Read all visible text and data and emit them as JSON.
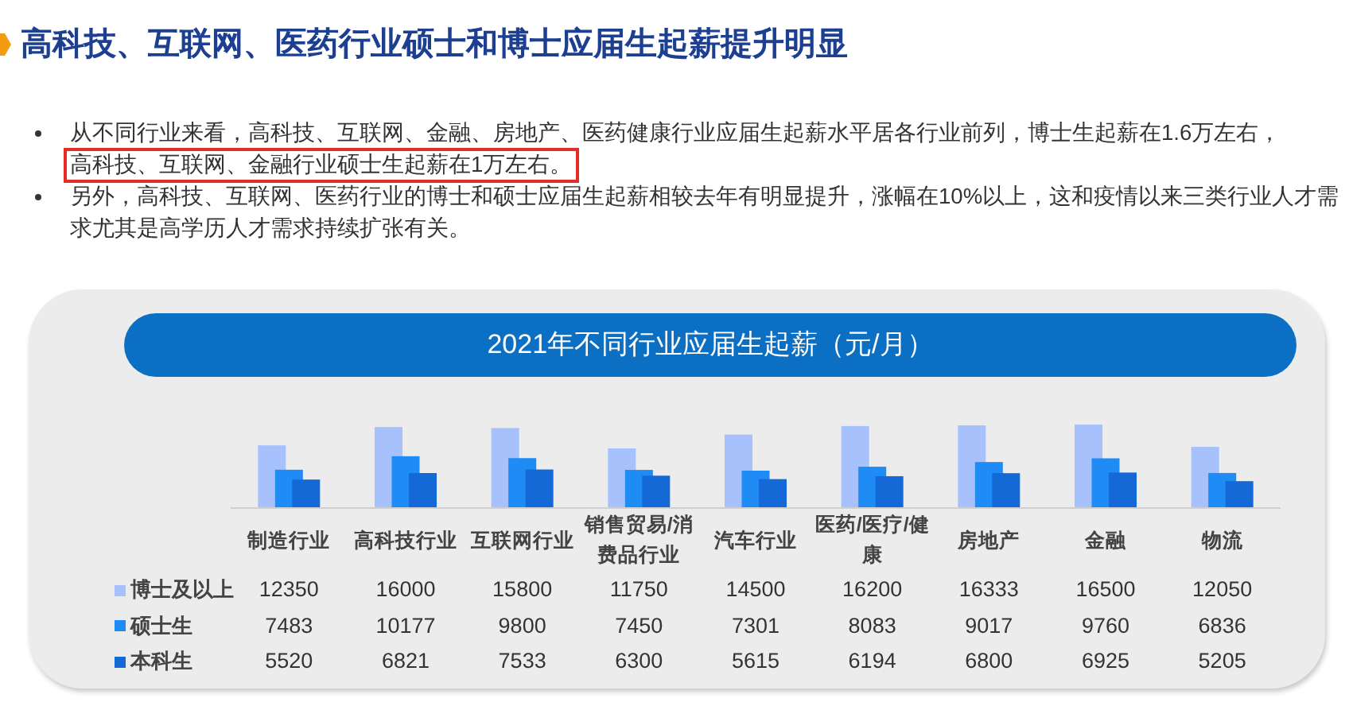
{
  "chart_data": {
    "type": "bar",
    "title": "高科技、互联网、医药行业硕士和博士应届生起薪提升明显",
    "subtitle": "2021年不同行业应届生起薪（元/月）",
    "annotations": [
      "从不同行业来看，高科技、互联网、金融、房地产、医药健康行业应届生起薪水平居各行业前列，博士生起薪在1.6万左右，",
      "高科技、互联网、金融行业硕士生起薪在1万左右。",
      "另外，高科技、互联网、医药行业的博士和硕士应届生起薪相较去年有明显提升，涨幅在10%以上，这和疫情以来三类行业人才需求尤其是高学历人才需求持续扩张有关。"
    ],
    "categories": [
      "制造行业",
      "高科技行业",
      "互联网行业",
      "销售贸易/消费品行业",
      "汽车行业",
      "医药/医疗/健康",
      "房地产",
      "金融",
      "物流"
    ],
    "series": [
      {
        "name": "博士及以上",
        "color": "#a6c1fb",
        "values": [
          12350,
          16000,
          15800,
          11750,
          14500,
          16200,
          16333,
          16500,
          12050
        ]
      },
      {
        "name": "硕士生",
        "color": "#1f8bf5",
        "values": [
          7483,
          10177,
          9800,
          7450,
          7301,
          8083,
          9017,
          9760,
          6836
        ]
      },
      {
        "name": "本科生",
        "color": "#1569d6",
        "values": [
          5520,
          6821,
          7533,
          6300,
          5615,
          6194,
          6800,
          6925,
          5205
        ]
      }
    ],
    "data_labels": true,
    "legend": "bottom left"
  }
}
